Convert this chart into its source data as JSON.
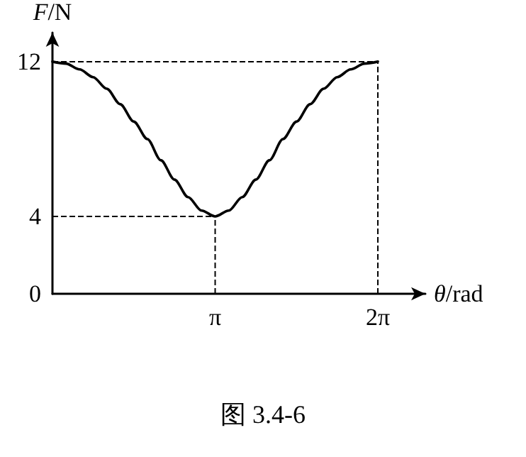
{
  "chart_data": {
    "type": "line",
    "xlabel": "θ/rad",
    "ylabel": "F/N",
    "annotations": [
      "图 3.4-6"
    ],
    "x": [
      0,
      0.2618,
      0.5236,
      0.7854,
      1.0472,
      1.309,
      1.5708,
      1.8326,
      2.0944,
      2.3562,
      2.618,
      2.8798,
      3.1416,
      3.4034,
      3.6652,
      3.927,
      4.1888,
      4.4506,
      4.7124,
      4.9742,
      5.236,
      5.4978,
      5.7596,
      6.0214,
      6.2832
    ],
    "series": [
      {
        "color": "#000000",
        "values": [
          12,
          11.9,
          11.6,
          11.2,
          10.6,
          9.8,
          8.9,
          8.0,
          6.9,
          5.9,
          5.0,
          4.3,
          4,
          4.3,
          5.0,
          5.9,
          6.9,
          8.0,
          8.9,
          9.8,
          10.6,
          11.2,
          11.6,
          11.9,
          12
        ]
      }
    ],
    "xlim": [
      0,
      7.2
    ],
    "ylim": [
      0,
      13.5
    ],
    "xticks": [
      {
        "value": 3.1416,
        "label": "π"
      },
      {
        "value": 6.2832,
        "label": "2π"
      }
    ],
    "yticks": [
      0,
      4,
      12
    ],
    "ref_lines": [
      {
        "axis": "y",
        "value": 12,
        "line_style": "dashed"
      },
      {
        "axis": "y",
        "value": 4,
        "line_style": "dashed"
      },
      {
        "axis": "x",
        "value": 3.1416,
        "line_style": "dashed"
      },
      {
        "axis": "x",
        "value": 6.2832,
        "line_style": "dashed"
      }
    ],
    "grid": false,
    "marker": "none",
    "line_style": "solid"
  }
}
